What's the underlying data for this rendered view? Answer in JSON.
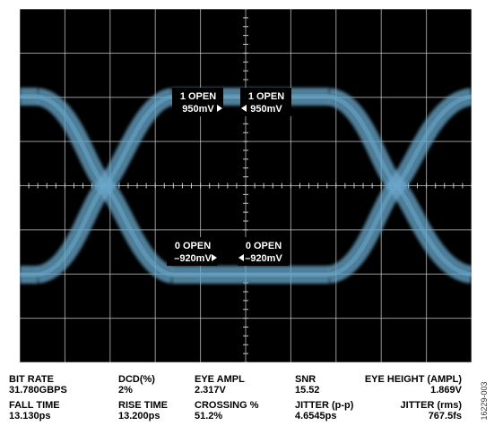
{
  "scope": {
    "background": "#000000",
    "grid_color": "#c8c8c8",
    "trace_color": "#6aa8cc",
    "grid_divisions": {
      "x": 10,
      "y": 8
    },
    "markers": [
      {
        "state": "1 OPEN",
        "level": "950mV"
      },
      {
        "state": "1 OPEN",
        "level": "950mV"
      },
      {
        "state": "0 OPEN",
        "level": "–920mV"
      },
      {
        "state": "0 OPEN",
        "level": "–920mV"
      }
    ]
  },
  "measurements": {
    "bit_rate": {
      "label": "BIT RATE",
      "value": "31.780GBPS"
    },
    "dcd": {
      "label": "DCD(%)",
      "value": "2%"
    },
    "eye_ampl": {
      "label": "EYE AMPL",
      "value": "2.317V"
    },
    "snr": {
      "label": "SNR",
      "value": "15.52"
    },
    "eye_height": {
      "label": "EYE HEIGHT (AMPL)",
      "value": "1.869V"
    },
    "fall_time": {
      "label": "FALL TIME",
      "value": "13.130ps"
    },
    "rise_time": {
      "label": "RISE TIME",
      "value": "13.200ps"
    },
    "crossing": {
      "label": "CROSSING %",
      "value": "51.2%"
    },
    "jitter_pp": {
      "label": "JITTER (p-p)",
      "value": "4.6545ps"
    },
    "jitter_rms": {
      "label": "JITTER (rms)",
      "value": "767.5fs"
    }
  },
  "figure_id": "16229-003"
}
